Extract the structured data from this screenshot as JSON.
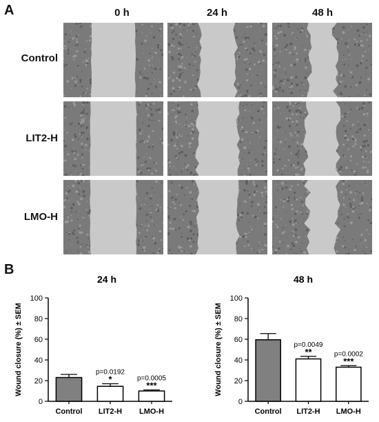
{
  "panel_a": {
    "label": "A",
    "time_points": [
      "0 h",
      "24 h",
      "48 h"
    ],
    "conditions": [
      "Control",
      "LIT2-H",
      "LMO-H"
    ],
    "images": [
      [
        {
          "name": "control-0h",
          "gap": 0.44
        },
        {
          "name": "control-24h",
          "gap": 0.36
        },
        {
          "name": "control-48h",
          "gap": 0.26
        }
      ],
      [
        {
          "name": "lit2-0h",
          "gap": 0.46
        },
        {
          "name": "lit2-24h",
          "gap": 0.41
        },
        {
          "name": "lit2-48h",
          "gap": 0.32
        }
      ],
      [
        {
          "name": "lmo-0h",
          "gap": 0.46
        },
        {
          "name": "lmo-24h",
          "gap": 0.4
        },
        {
          "name": "lmo-48h",
          "gap": 0.3
        }
      ]
    ]
  },
  "panel_b": {
    "label": "B"
  },
  "colors": {
    "control_bar": "#808080",
    "treatment_bar": "#ffffff",
    "cell_texture": "#7a7a7a",
    "gap": "#c9c9c9"
  },
  "chart_data": [
    {
      "type": "bar",
      "title": "24 h",
      "ylabel": "Wound closure (%) ± SEM",
      "categories": [
        "Control",
        "LIT2-H",
        "LMO-H"
      ],
      "values": [
        23,
        14.5,
        10
      ],
      "errors": [
        3,
        2.5,
        1
      ],
      "pvalues": [
        "",
        "p=0.0192",
        "p=0.0005"
      ],
      "stars": [
        "",
        "*",
        "***"
      ],
      "ylim": [
        0,
        100
      ],
      "yticks": [
        "0",
        "20",
        "40",
        "60",
        "80",
        "100"
      ]
    },
    {
      "type": "bar",
      "title": "48 h",
      "ylabel": "Wound closure (%) ± SEM",
      "categories": [
        "Control",
        "LIT2-H",
        "LMO-H"
      ],
      "values": [
        59.5,
        41,
        33
      ],
      "errors": [
        6,
        2.5,
        1.5
      ],
      "pvalues": [
        "",
        "p=0.0049",
        "p=0.0002"
      ],
      "stars": [
        "",
        "**",
        "***"
      ],
      "ylim": [
        0,
        100
      ],
      "yticks": [
        "0",
        "20",
        "40",
        "60",
        "80",
        "100"
      ]
    }
  ]
}
